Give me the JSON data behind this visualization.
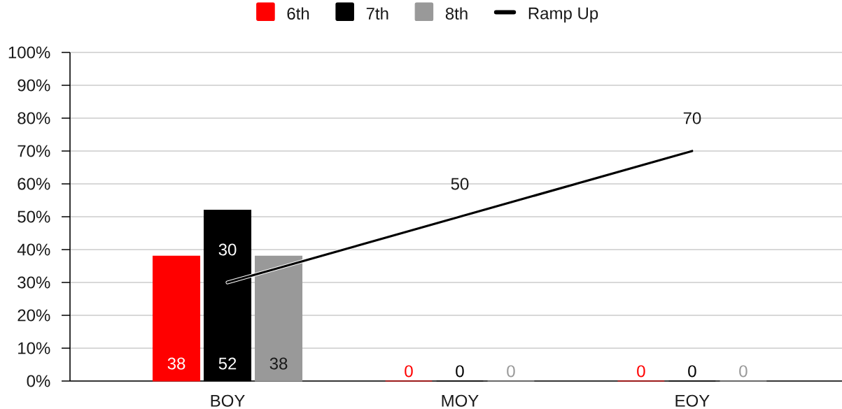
{
  "chart_data": {
    "type": "bar",
    "categories": [
      "BOY",
      "MOY",
      "EOY"
    ],
    "series": [
      {
        "name": "6th",
        "color": "#ff0000",
        "values": [
          38,
          0,
          0
        ]
      },
      {
        "name": "7th",
        "color": "#000000",
        "values": [
          52,
          0,
          0
        ]
      },
      {
        "name": "8th",
        "color": "#999999",
        "values": [
          38,
          0,
          0
        ]
      },
      {
        "name": "Ramp Up",
        "type": "line",
        "color": "#000000",
        "values": [
          30,
          50,
          70
        ]
      }
    ],
    "ylim": [
      0,
      100
    ],
    "yticks": [
      {
        "value": 0,
        "label": "0%"
      },
      {
        "value": 10,
        "label": "10%"
      },
      {
        "value": 20,
        "label": "20%"
      },
      {
        "value": 30,
        "label": "30%"
      },
      {
        "value": 40,
        "label": "40%"
      },
      {
        "value": 50,
        "label": "50%"
      },
      {
        "value": 60,
        "label": "60%"
      },
      {
        "value": 70,
        "label": "70%"
      },
      {
        "value": 80,
        "label": "80%"
      },
      {
        "value": 90,
        "label": "90%"
      },
      {
        "value": 100,
        "label": "100%"
      }
    ],
    "grid": "y",
    "legend": "top",
    "data_labels": true
  }
}
